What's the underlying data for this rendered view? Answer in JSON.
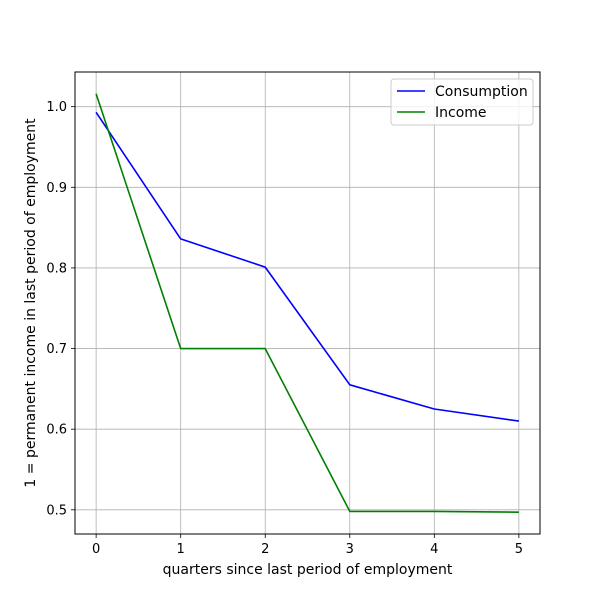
{
  "chart_data": {
    "type": "line",
    "title": "",
    "xlabel": "quarters since last period of employment",
    "ylabel": "1 = permanent income in last period of employment",
    "x": [
      0,
      1,
      2,
      3,
      4,
      5
    ],
    "xlim": [
      -0.25,
      5.25
    ],
    "ylim": [
      0.47,
      1.043
    ],
    "xticks": [
      0,
      1,
      2,
      3,
      4,
      5
    ],
    "yticks": [
      0.5,
      0.6,
      0.7,
      0.8,
      0.9,
      1.0
    ],
    "xtick_labels": [
      "0",
      "1",
      "2",
      "3",
      "4",
      "5"
    ],
    "ytick_labels": [
      "0.5",
      "0.6",
      "0.7",
      "0.8",
      "0.9",
      "1.0"
    ],
    "grid": true,
    "legend_position": "top-right",
    "series": [
      {
        "name": "Consumption",
        "color": "#0000ff",
        "values": [
          0.993,
          0.836,
          0.801,
          0.655,
          0.625,
          0.61
        ]
      },
      {
        "name": "Income",
        "color": "#008000",
        "values": [
          1.016,
          0.7,
          0.7,
          0.498,
          0.498,
          0.497
        ]
      }
    ]
  }
}
